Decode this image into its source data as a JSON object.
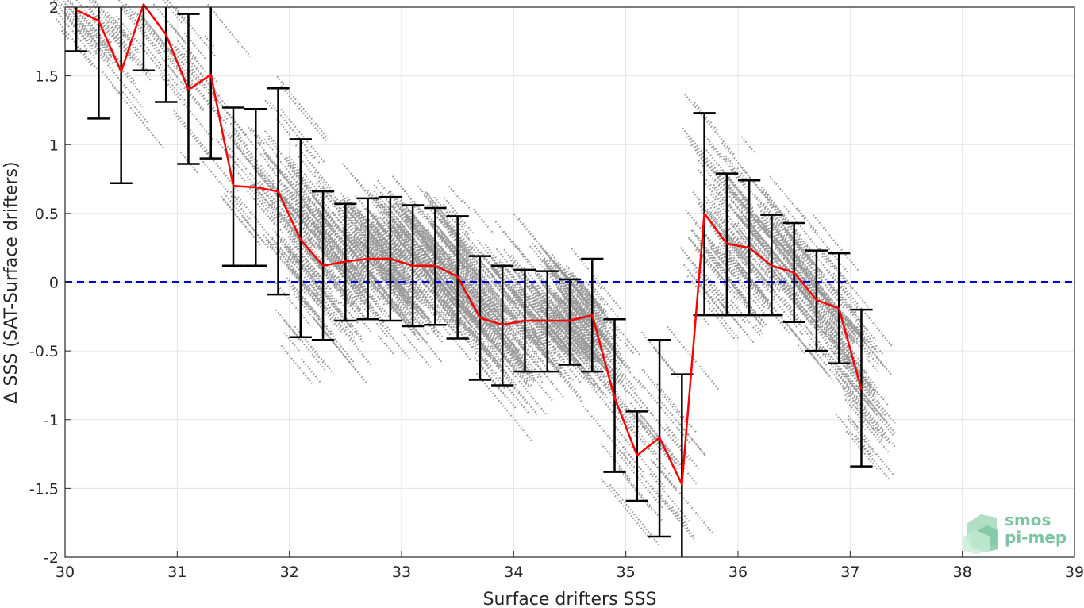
{
  "chart_data": {
    "type": "scatter",
    "xlabel": "Surface drifters SSS",
    "ylabel": "Δ SSS (SAT-Surface drifters)",
    "xlim": [
      30,
      39
    ],
    "ylim": [
      -2,
      2
    ],
    "x_ticks": [
      30,
      31,
      32,
      33,
      34,
      35,
      36,
      37,
      38,
      39
    ],
    "y_ticks": [
      -2,
      -1.5,
      -1,
      -0.5,
      0,
      0.5,
      1,
      1.5,
      2
    ],
    "grid": true,
    "reference_line": {
      "y": 0,
      "style": "dashed",
      "color": "#0000cc"
    },
    "scatter_color": "#999999",
    "mean_color": "#ff0000",
    "errorbar_color": "#000000",
    "scatter_clusters": [
      {
        "x_range": [
          30.0,
          34.8
        ],
        "density": "medium"
      },
      {
        "x_range": [
          32.0,
          34.8
        ],
        "density": "high"
      },
      {
        "x_range": [
          35.7,
          37.2
        ],
        "density": "medium"
      }
    ],
    "series": [
      {
        "type": "line-errorbar",
        "x": [
          30.1,
          30.3,
          30.5,
          30.7,
          30.9,
          31.1,
          31.3,
          31.5,
          31.7,
          31.9,
          32.1,
          32.3,
          32.5,
          32.7,
          32.9,
          33.1,
          33.3,
          33.5,
          33.7,
          33.9,
          34.1,
          34.3,
          34.5,
          34.7,
          34.9,
          35.1,
          35.3,
          35.5,
          35.7,
          35.9,
          36.1,
          36.3,
          36.5,
          36.7,
          36.9,
          37.1
        ],
        "mean": [
          1.98,
          1.9,
          1.53,
          2.02,
          1.8,
          1.4,
          1.51,
          0.7,
          0.69,
          0.66,
          0.31,
          0.12,
          0.15,
          0.17,
          0.17,
          0.12,
          0.12,
          0.04,
          -0.26,
          -0.31,
          -0.28,
          -0.28,
          -0.28,
          -0.24,
          -0.84,
          -1.26,
          -1.13,
          -1.47,
          0.5,
          0.28,
          0.25,
          0.12,
          0.07,
          -0.13,
          -0.19,
          -0.78
        ],
        "upper": [
          2.2,
          2.2,
          2.2,
          2.2,
          2.2,
          1.95,
          2.2,
          1.27,
          1.26,
          1.41,
          1.04,
          0.66,
          0.57,
          0.61,
          0.62,
          0.56,
          0.54,
          0.48,
          0.19,
          0.12,
          0.09,
          0.08,
          0.02,
          0.17,
          -0.27,
          -0.94,
          -0.42,
          -0.67,
          1.23,
          0.79,
          0.74,
          0.49,
          0.43,
          0.23,
          0.21,
          -0.2
        ],
        "lower": [
          1.68,
          1.19,
          0.72,
          1.54,
          1.31,
          0.86,
          0.9,
          0.12,
          0.12,
          -0.09,
          -0.4,
          -0.42,
          -0.28,
          -0.27,
          -0.28,
          -0.32,
          -0.31,
          -0.41,
          -0.71,
          -0.75,
          -0.65,
          -0.65,
          -0.6,
          -0.65,
          -1.38,
          -1.59,
          -1.85,
          -2.2,
          -0.24,
          -0.24,
          -0.24,
          -0.24,
          -0.29,
          -0.5,
          -0.59,
          -1.34
        ]
      }
    ]
  },
  "logo": {
    "line1": "smos",
    "line2": "pi-mep",
    "color": "#7cc4a0"
  }
}
